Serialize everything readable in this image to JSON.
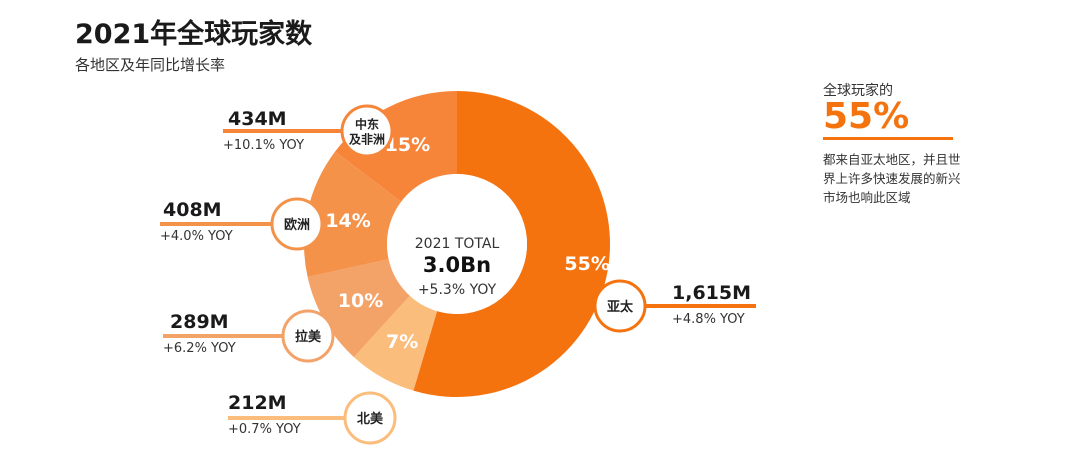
{
  "title": "2021年全球玩家数",
  "subtitle": "各地区及年同比增长率",
  "center": {
    "label": "2021 TOTAL",
    "value": "3.0Bn",
    "yoy": "+5.3% YOY"
  },
  "note": {
    "line1": "全球玩家的",
    "highlight": "55%",
    "body": "都来自亚太地区，并且世界上许多快速发展的新兴市场也响此区域"
  },
  "chart_data": {
    "type": "pie",
    "title": "2021年全球玩家数",
    "subtitle": "各地区及年同比增长率",
    "slices": [
      {
        "region": "亚太",
        "players_m": 1615,
        "value_label": "1,615M",
        "share": "55%",
        "yoy": "+4.8% YOY",
        "color": "#f5730f"
      },
      {
        "region": "北美",
        "players_m": 212,
        "value_label": "212M",
        "share": "7%",
        "yoy": "+0.7% YOY",
        "color": "#fbbd7c"
      },
      {
        "region": "拉美",
        "players_m": 289,
        "value_label": "289M",
        "share": "10%",
        "yoy": "+6.2% YOY",
        "color": "#f3a268"
      },
      {
        "region": "欧洲",
        "players_m": 408,
        "value_label": "408M",
        "share": "14%",
        "yoy": "+4.0% YOY",
        "color": "#f5924a"
      },
      {
        "region": "中东\n及非洲",
        "players_m": 434,
        "value_label": "434M",
        "share": "15%",
        "yoy": "+10.1% YOY",
        "color": "#f6853a"
      }
    ]
  }
}
